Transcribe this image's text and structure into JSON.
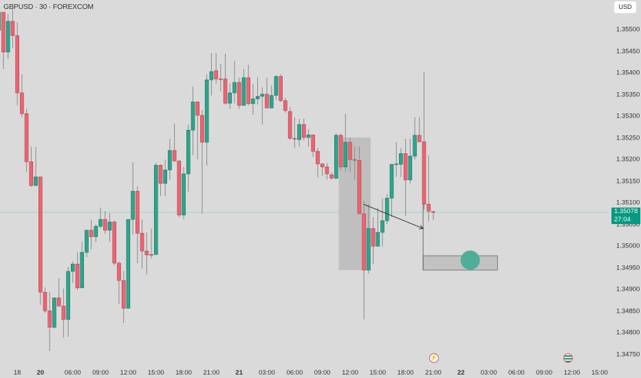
{
  "header": {
    "symbol_title": "GBPUSD · 30 · FOREXCOM",
    "currency_button": "USD"
  },
  "current_price": {
    "value": "1.35078",
    "countdown": "27:04",
    "color": "#089981"
  },
  "colors": {
    "up": "#2ba58c",
    "down": "#ee6370",
    "background": "#dadada",
    "zone_fill": "#bfbfbf",
    "target_circle": "#4fae98"
  },
  "events": [
    {
      "icon": "lightning-event-icon"
    },
    {
      "icon": "uk-flag-event-icon"
    }
  ],
  "chart_data": {
    "type": "candlestick",
    "title": "GBPUSD · 30 · FOREXCOM",
    "interval": "30",
    "ylim": [
      1.3474,
      1.3557
    ],
    "y_ticks": [
      "1.35500",
      "1.35450",
      "1.35400",
      "1.35350",
      "1.35300",
      "1.35250",
      "1.35200",
      "1.35150",
      "1.35100",
      "1.35050",
      "1.35000",
      "1.34950",
      "1.34900",
      "1.34850",
      "1.34800",
      "1.34750"
    ],
    "x_ticks": [
      {
        "label": "18",
        "bar": 4
      },
      {
        "label": "20",
        "bar": 9,
        "bold": true
      },
      {
        "label": "06:00",
        "bar": 16
      },
      {
        "label": "09:00",
        "bar": 22
      },
      {
        "label": "12:00",
        "bar": 28
      },
      {
        "label": "15:00",
        "bar": 34
      },
      {
        "label": "18:00",
        "bar": 40
      },
      {
        "label": "21:00",
        "bar": 46
      },
      {
        "label": "21",
        "bar": 52,
        "bold": true
      },
      {
        "label": "03:00",
        "bar": 58
      },
      {
        "label": "06:00",
        "bar": 64
      },
      {
        "label": "09:00",
        "bar": 70
      },
      {
        "label": "12:00",
        "bar": 76
      },
      {
        "label": "15:00",
        "bar": 82
      },
      {
        "label": "18:00",
        "bar": 88
      },
      {
        "label": "21:00",
        "bar": 94
      },
      {
        "label": "22",
        "bar": 100,
        "bold": true
      },
      {
        "label": "03:00",
        "bar": 106
      },
      {
        "label": "06:00",
        "bar": 112
      },
      {
        "label": "09:00",
        "bar": 118
      },
      {
        "label": "12:00",
        "bar": 124
      },
      {
        "label": "15:00",
        "bar": 130
      }
    ],
    "ohlc": [
      [
        1.35498,
        1.35547,
        1.35498,
        1.3554
      ],
      [
        1.3554,
        1.3554,
        1.35409,
        1.35448
      ],
      [
        1.35448,
        1.35536,
        1.35432,
        1.35519
      ],
      [
        1.35519,
        1.35547,
        1.35457,
        1.35486
      ],
      [
        1.35486,
        1.35517,
        1.35325,
        1.35354
      ],
      [
        1.35354,
        1.35397,
        1.35298,
        1.35306
      ],
      [
        1.35306,
        1.35317,
        1.35172,
        1.35195
      ],
      [
        1.35195,
        1.3523,
        1.35137,
        1.3514
      ],
      [
        1.3514,
        1.35229,
        1.3514,
        1.3516
      ],
      [
        1.3516,
        1.3516,
        1.34865,
        1.34894
      ],
      [
        1.34894,
        1.34905,
        1.34846,
        1.34851
      ],
      [
        1.34851,
        1.34894,
        1.34758,
        1.34813
      ],
      [
        1.34813,
        1.34881,
        1.3481,
        1.34881
      ],
      [
        1.34881,
        1.34926,
        1.34862,
        1.34862
      ],
      [
        1.34862,
        1.34902,
        1.34789,
        1.34831
      ],
      [
        1.34831,
        1.34953,
        1.34791,
        1.34942
      ],
      [
        1.34942,
        1.34965,
        1.34915,
        1.34959
      ],
      [
        1.34959,
        1.34986,
        1.34899,
        1.34904
      ],
      [
        1.34904,
        1.35011,
        1.34904,
        1.34986
      ],
      [
        1.34986,
        1.35037,
        1.34975,
        1.35037
      ],
      [
        1.35037,
        1.35061,
        1.34992,
        1.35022
      ],
      [
        1.35022,
        1.35051,
        1.3501,
        1.35046
      ],
      [
        1.35046,
        1.35089,
        1.35041,
        1.35062
      ],
      [
        1.35062,
        1.35081,
        1.35029,
        1.35037
      ],
      [
        1.35037,
        1.35076,
        1.3501,
        1.35056
      ],
      [
        1.35056,
        1.35059,
        1.34956,
        1.34961
      ],
      [
        1.34961,
        1.34965,
        1.34867,
        1.34921
      ],
      [
        1.34921,
        1.34943,
        1.34823,
        1.34857
      ],
      [
        1.34857,
        1.35062,
        1.34857,
        1.35062
      ],
      [
        1.35062,
        1.35194,
        1.35027,
        1.35127
      ],
      [
        1.35127,
        1.35138,
        1.34961,
        1.3503
      ],
      [
        1.3503,
        1.35062,
        1.34948,
        1.34989
      ],
      [
        1.34989,
        1.35032,
        1.34935,
        1.3498
      ],
      [
        1.34981,
        1.35041,
        1.34972,
        1.3498
      ],
      [
        1.34981,
        1.35192,
        1.3498,
        1.35187
      ],
      [
        1.35187,
        1.35189,
        1.35116,
        1.35145
      ],
      [
        1.35145,
        1.352,
        1.35116,
        1.35176
      ],
      [
        1.35176,
        1.35248,
        1.35153,
        1.35221
      ],
      [
        1.35221,
        1.35283,
        1.35194,
        1.35197
      ],
      [
        1.35197,
        1.35197,
        1.35067,
        1.35072
      ],
      [
        1.35072,
        1.35183,
        1.35062,
        1.35167
      ],
      [
        1.35167,
        1.35281,
        1.35126,
        1.35268
      ],
      [
        1.35268,
        1.35368,
        1.3521,
        1.35333
      ],
      [
        1.35333,
        1.35335,
        1.352,
        1.35302
      ],
      [
        1.35302,
        1.35314,
        1.35075,
        1.3524
      ],
      [
        1.3524,
        1.35397,
        1.35186,
        1.35384
      ],
      [
        1.35384,
        1.35446,
        1.35348,
        1.35403
      ],
      [
        1.35405,
        1.35446,
        1.35375,
        1.35386
      ],
      [
        1.35386,
        1.35421,
        1.35357,
        1.35385
      ],
      [
        1.35386,
        1.35444,
        1.35327,
        1.3533
      ],
      [
        1.3533,
        1.35376,
        1.35317,
        1.35354
      ],
      [
        1.35354,
        1.35428,
        1.3533,
        1.35378
      ],
      [
        1.35378,
        1.35389,
        1.35317,
        1.35325
      ],
      [
        1.35325,
        1.35409,
        1.35325,
        1.35389
      ],
      [
        1.35389,
        1.35419,
        1.35325,
        1.35329
      ],
      [
        1.35329,
        1.35375,
        1.35303,
        1.3534
      ],
      [
        1.3534,
        1.3539,
        1.35327,
        1.35346
      ],
      [
        1.35346,
        1.35367,
        1.35281,
        1.35351
      ],
      [
        1.35351,
        1.35389,
        1.35319,
        1.35319
      ],
      [
        1.35319,
        1.35371,
        1.35319,
        1.35348
      ],
      [
        1.35348,
        1.35394,
        1.35338,
        1.35392
      ],
      [
        1.35392,
        1.35397,
        1.35333,
        1.35336
      ],
      [
        1.35336,
        1.35343,
        1.35308,
        1.35313
      ],
      [
        1.35311,
        1.35322,
        1.35246,
        1.35249
      ],
      [
        1.35249,
        1.35297,
        1.35227,
        1.35248
      ],
      [
        1.35246,
        1.35294,
        1.3523,
        1.35281
      ],
      [
        1.35281,
        1.35295,
        1.35244,
        1.35251
      ],
      [
        1.35251,
        1.3527,
        1.3523,
        1.35257
      ],
      [
        1.35257,
        1.35257,
        1.35206,
        1.35219
      ],
      [
        1.35219,
        1.35227,
        1.35159,
        1.3519
      ],
      [
        1.3519,
        1.35192,
        1.35162,
        1.35183
      ],
      [
        1.35183,
        1.35192,
        1.35154,
        1.35167
      ],
      [
        1.35165,
        1.35172,
        1.35154,
        1.35157
      ],
      [
        1.35157,
        1.3526,
        1.35154,
        1.35256
      ],
      [
        1.35256,
        1.3526,
        1.35176,
        1.35183
      ],
      [
        1.35183,
        1.35306,
        1.35172,
        1.3524
      ],
      [
        1.3524,
        1.35251,
        1.35172,
        1.352
      ],
      [
        1.352,
        1.3523,
        1.35153,
        1.35199
      ],
      [
        1.35198,
        1.3523,
        1.35075,
        1.35075
      ],
      [
        1.35075,
        1.35105,
        1.34831,
        1.34945
      ],
      [
        1.34945,
        1.35097,
        1.34937,
        1.35041
      ],
      [
        1.35041,
        1.35067,
        1.34959,
        1.35
      ],
      [
        1.35,
        1.35089,
        1.35,
        1.35032
      ],
      [
        1.35032,
        1.3511,
        1.35,
        1.35059
      ],
      [
        1.35059,
        1.35121,
        1.35051,
        1.35111
      ],
      [
        1.35111,
        1.3519,
        1.35067,
        1.35189
      ],
      [
        1.35189,
        1.3524,
        1.3516,
        1.3519
      ],
      [
        1.35189,
        1.35227,
        1.3516,
        1.35214
      ],
      [
        1.35214,
        1.35248,
        1.3507,
        1.35153
      ],
      [
        1.35153,
        1.35248,
        1.35145,
        1.35208
      ],
      [
        1.35208,
        1.35298,
        1.352,
        1.35256
      ],
      [
        1.35256,
        1.35298,
        1.35241,
        1.35241
      ],
      [
        1.35241,
        1.35402,
        1.35084,
        1.35097
      ],
      [
        1.35097,
        1.3521,
        1.35057,
        1.35081
      ],
      [
        1.3508,
        1.35081,
        1.35061,
        1.35078
      ]
    ],
    "drawings": {
      "zone_rectangle": {
        "bar_start": 74,
        "bar_end": 80,
        "price_top": 1.35251,
        "price_bottom": 1.34945
      },
      "arrow": {
        "from_bar": 78.9,
        "from_price": 1.35097,
        "to_bar": 91.8,
        "to_price": 1.35041
      },
      "target_box": {
        "bar_start": 91.8,
        "bar_end": 107.9,
        "price_top": 1.34978,
        "price_bottom": 1.34945,
        "vertical_from_price": 1.35097
      },
      "target_circle": {
        "bar": 102,
        "price": 1.34968
      }
    }
  }
}
